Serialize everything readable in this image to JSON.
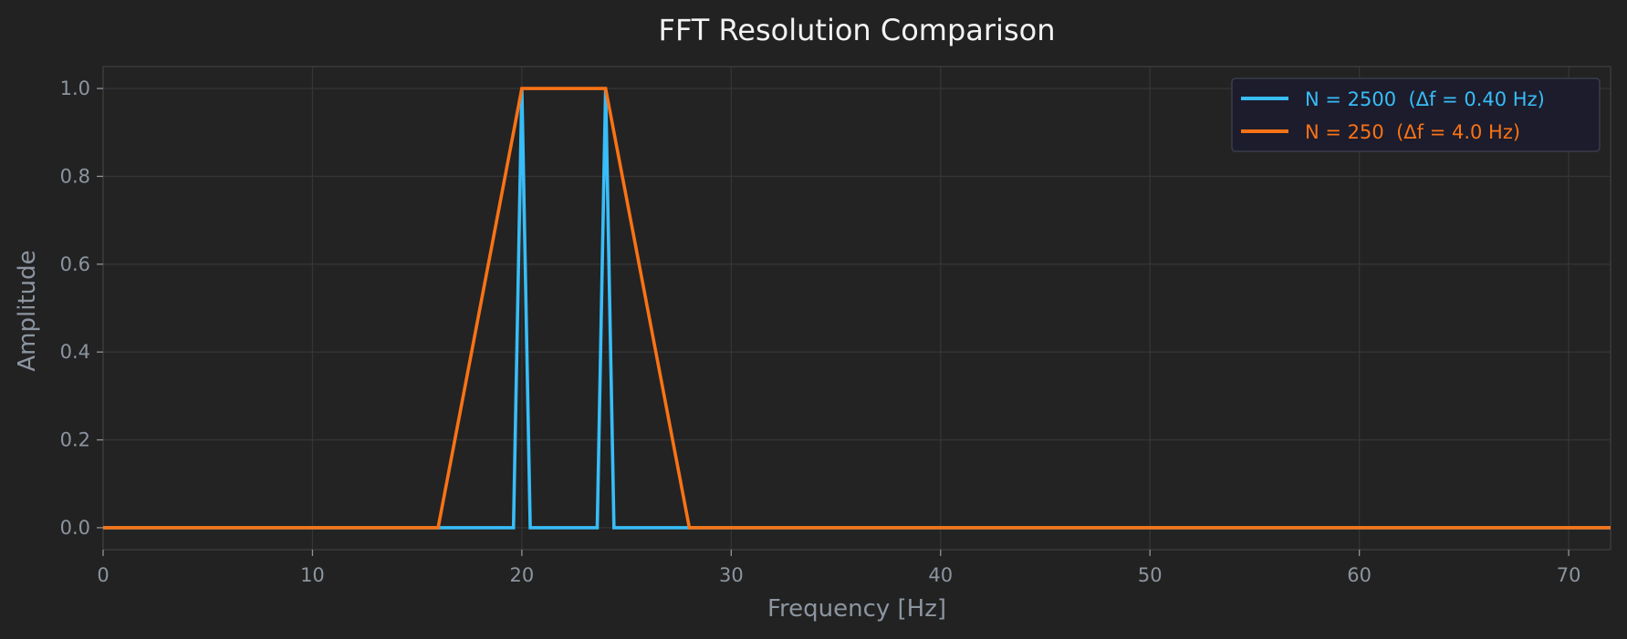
{
  "colors": {
    "background": "#222222",
    "plot_background": "#232323",
    "grid": "#353535",
    "spine": "#3a3a3a",
    "text": "#8c95a0",
    "title": "#f2f2f2",
    "legend_bg": "#1c1c2c",
    "legend_border": "#3a3d4a"
  },
  "chart_data": {
    "type": "line",
    "title": "FFT Resolution Comparison",
    "xlabel": "Frequency [Hz]",
    "ylabel": "Amplitude",
    "xlim": [
      0,
      72
    ],
    "ylim": [
      -0.05,
      1.05
    ],
    "xticks": [
      0,
      10,
      20,
      30,
      40,
      50,
      60,
      70
    ],
    "xtick_labels": [
      "0",
      "10",
      "20",
      "30",
      "40",
      "50",
      "60",
      "70"
    ],
    "yticks": [
      0.0,
      0.2,
      0.4,
      0.6,
      0.8,
      1.0
    ],
    "ytick_labels": [
      "0.0",
      "0.2",
      "0.4",
      "0.6",
      "0.8",
      "1.0"
    ],
    "grid": true,
    "legend_position": "top-right",
    "series": [
      {
        "name": "N = 2500  (Δf = 0.40 Hz)",
        "color": "#38bdf8",
        "x": [
          0,
          19.6,
          20.0,
          20.4,
          23.6,
          24.0,
          24.4,
          72
        ],
        "y": [
          0,
          0,
          1.0,
          0,
          0,
          1.0,
          0,
          0
        ]
      },
      {
        "name": "N = 250  (Δf = 4.0 Hz)",
        "color": "#f97316",
        "x": [
          0,
          16,
          20,
          24,
          28,
          72
        ],
        "y": [
          0,
          0,
          1.0,
          1.0,
          0,
          0
        ]
      }
    ]
  }
}
